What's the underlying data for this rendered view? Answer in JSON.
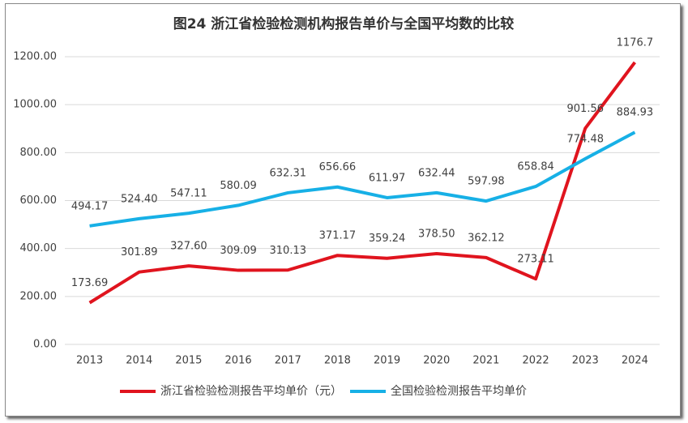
{
  "chart_data": {
    "type": "line",
    "title": "图24   浙江省检验检测机构报告单价与全国平均数的比较",
    "categories": [
      "2013",
      "2014",
      "2015",
      "2016",
      "2017",
      "2018",
      "2019",
      "2020",
      "2021",
      "2022",
      "2023",
      "2024"
    ],
    "series": [
      {
        "name": "浙江省检验检测报告平均单价（元）",
        "color": "#e0141e",
        "values": [
          173.69,
          301.89,
          327.6,
          309.09,
          310.13,
          371.17,
          359.24,
          378.5,
          362.12,
          273.11,
          901.56,
          1176.7
        ],
        "value_labels": [
          "173.69",
          "301.89",
          "327.60",
          "309.09",
          "310.13",
          "371.17",
          "359.24",
          "378.50",
          "362.12",
          "273.11",
          "901.56",
          "1176.7"
        ]
      },
      {
        "name": "全国检验检测报告平均单价",
        "color": "#17b0e6",
        "values": [
          494.17,
          524.4,
          547.11,
          580.09,
          632.31,
          656.66,
          611.97,
          632.44,
          597.98,
          658.84,
          774.48,
          884.93
        ],
        "value_labels": [
          "494.17",
          "524.40",
          "547.11",
          "580.09",
          "632.31",
          "656.66",
          "611.97",
          "632.44",
          "597.98",
          "658.84",
          "774.48",
          "884.93"
        ]
      }
    ],
    "ylim": [
      0,
      1200
    ],
    "yticks": [
      {
        "value": 0,
        "label": "0.00"
      },
      {
        "value": 200,
        "label": "200.00"
      },
      {
        "value": 400,
        "label": "400.00"
      },
      {
        "value": 600,
        "label": "600.00"
      },
      {
        "value": 800,
        "label": "800.00"
      },
      {
        "value": 1000,
        "label": "1000.00"
      },
      {
        "value": 1200,
        "label": "1200.00"
      }
    ],
    "grid": true,
    "legend": "bottom"
  }
}
